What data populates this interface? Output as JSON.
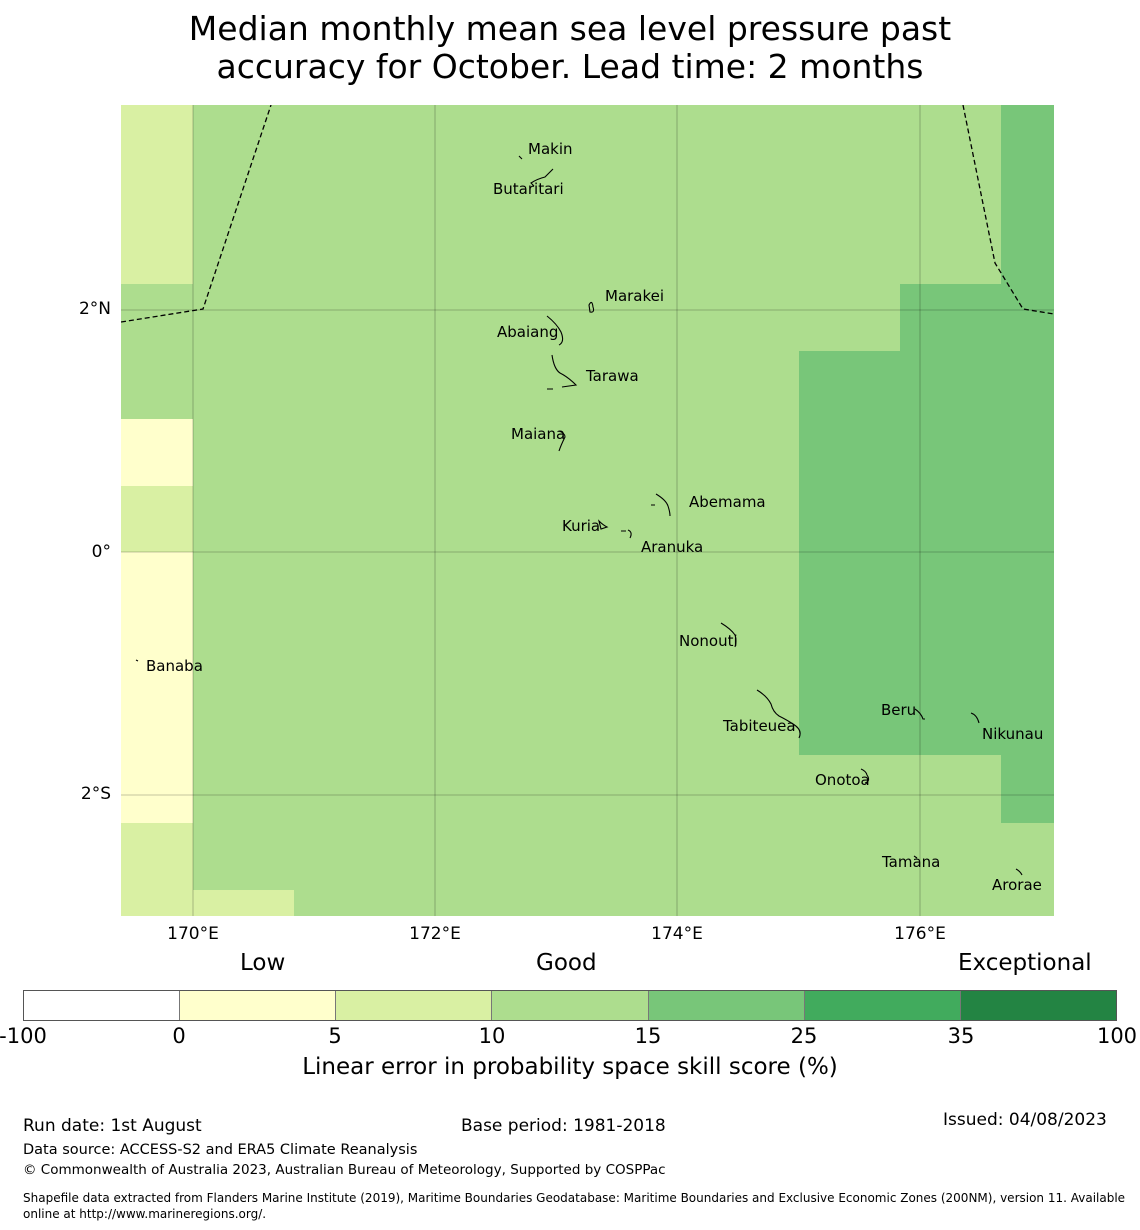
{
  "title": {
    "line1": "Median monthly mean sea level pressure past",
    "line2": "accuracy for October. Lead time: 2 months"
  },
  "map": {
    "lat_labels": [
      "2°N",
      "0°",
      "2°S"
    ],
    "lon_labels": [
      "170°E",
      "172°E",
      "174°E",
      "176°E"
    ],
    "places": [
      "Makin",
      "Butaritari",
      "Marakei",
      "Abaiang",
      "Tarawa",
      "Maiana",
      "Abemama",
      "Kuria",
      "Aranuka",
      "Banaba",
      "Nonouti",
      "Tabiteuea",
      "Beru",
      "Nikunau",
      "Onotoa",
      "Tamana",
      "Arorae"
    ]
  },
  "legend": {
    "categories": [
      "Low",
      "Good",
      "Exceptional"
    ],
    "ticks": [
      "-100",
      "0",
      "5",
      "10",
      "15",
      "25",
      "35",
      "100"
    ],
    "colors": [
      "#ffffff",
      "#ffffcc",
      "#d9f0a3",
      "#addd8e",
      "#78c679",
      "#41ab5d",
      "#238443"
    ],
    "title": "Linear error in probability space skill score (%)"
  },
  "footer": {
    "run_date": "Run date: 1st August",
    "base_period": "Base period: 1981-2018",
    "issued": "Issued: 04/08/2023",
    "source": "Data source: ACCESS-S2 and ERA5 Climate Reanalysis",
    "copyright": "© Commonwealth of Australia 2023, Australian Bureau of Meteorology, Supported by COSPPac",
    "shapefile_line1": "Shapefile data extracted from Flanders Marine Institute (2019), Maritime Boundaries Geodatabase: Maritime Boundaries and Exclusive Economic Zones (200NM), version 11. Available",
    "shapefile_line2": "online at http://www.marineregions.org/."
  }
}
